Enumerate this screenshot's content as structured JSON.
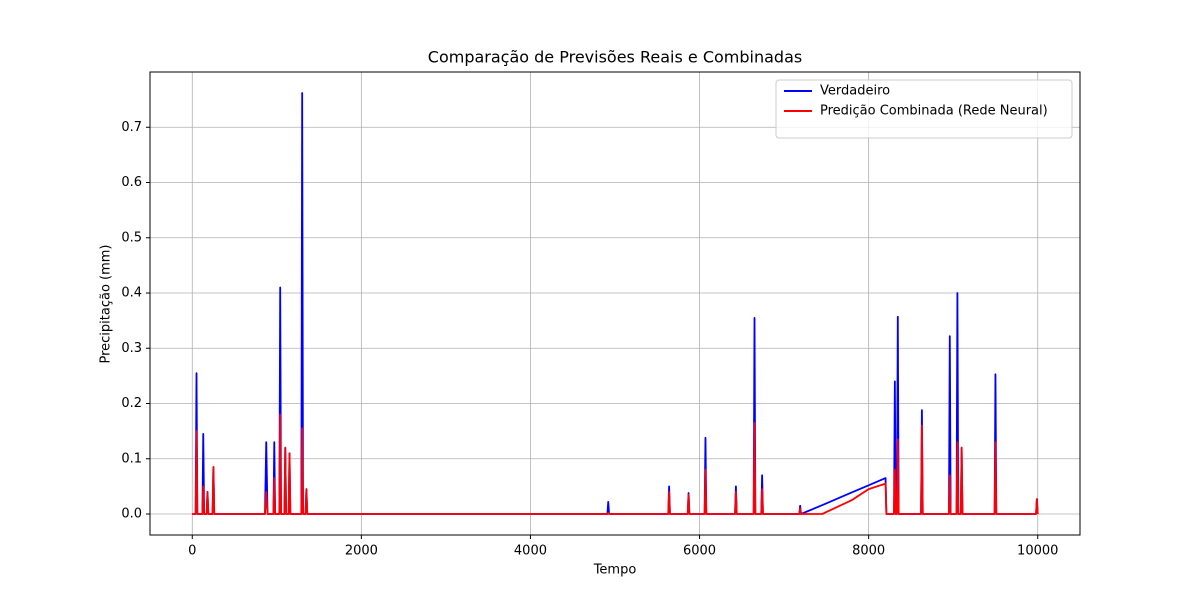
{
  "chart_data": {
    "type": "line",
    "title": "Comparação de Previsões Reais e Combinadas",
    "x_label": "Tempo",
    "y_label": "Precipitação (mm)",
    "x": [
      0,
      40,
      50,
      60,
      120,
      130,
      140,
      170,
      180,
      190,
      240,
      250,
      260,
      860,
      875,
      890,
      960,
      970,
      980,
      1030,
      1040,
      1050,
      1090,
      1100,
      1110,
      1140,
      1150,
      1160,
      1290,
      1300,
      1310,
      1340,
      1350,
      1360,
      4910,
      4920,
      4930,
      5630,
      5640,
      5650,
      5860,
      5870,
      5880,
      6060,
      6070,
      6080,
      6420,
      6430,
      6440,
      6640,
      6650,
      6660,
      6730,
      6740,
      6750,
      7180,
      7190,
      7200,
      7450,
      7800,
      8000,
      8200,
      8210,
      8300,
      8310,
      8320,
      8335,
      8345,
      8355,
      8620,
      8630,
      8640,
      8950,
      8960,
      8970,
      9040,
      9050,
      9060,
      9090,
      9100,
      9110,
      9490,
      9500,
      9510,
      9980,
      9990,
      10000
    ],
    "series": [
      {
        "name": "Verdadeiro",
        "color": "#0000ff",
        "values": [
          0,
          0,
          0.255,
          0,
          0,
          0.145,
          0,
          0,
          0.04,
          0,
          0,
          0.085,
          0,
          0,
          0.13,
          0,
          0,
          0.13,
          0,
          0,
          0.41,
          0,
          0,
          0.12,
          0,
          0,
          0.11,
          0,
          0,
          0.762,
          0,
          0,
          0.045,
          0,
          0,
          0.022,
          0,
          0,
          0.05,
          0,
          0,
          0.038,
          0,
          0,
          0.138,
          0,
          0,
          0.05,
          0,
          0,
          0.355,
          0,
          0,
          0.07,
          0,
          0,
          0.015,
          0,
          0.016,
          0.039,
          0.052,
          0.065,
          0,
          0,
          0.24,
          0,
          0,
          0.357,
          0,
          0,
          0.188,
          0,
          0,
          0.322,
          0,
          0,
          0.4,
          0,
          0,
          0.12,
          0,
          0,
          0.253,
          0,
          0,
          0.027,
          0
        ]
      },
      {
        "name": "Predição Combinada (Rede Neural)",
        "color": "#ff0000",
        "values": [
          0,
          0,
          0.15,
          0,
          0,
          0.05,
          0,
          0,
          0.04,
          0,
          0,
          0.085,
          0,
          0,
          0.04,
          0,
          0,
          0.065,
          0,
          0,
          0.18,
          0,
          0,
          0.12,
          0,
          0,
          0.11,
          0,
          0,
          0.155,
          0,
          0,
          0.045,
          0,
          0,
          0.002,
          0,
          0,
          0.04,
          0,
          0,
          0.035,
          0,
          0,
          0.08,
          0,
          0,
          0.04,
          0,
          0,
          0.165,
          0,
          0,
          0.045,
          0,
          0,
          0.01,
          0,
          0,
          0.025,
          0.045,
          0.055,
          0,
          0,
          0.08,
          0,
          0,
          0.135,
          0,
          0,
          0.16,
          0,
          0,
          0.07,
          0,
          0,
          0.13,
          0,
          0,
          0.12,
          0,
          0,
          0.13,
          0,
          0,
          0.027,
          0
        ]
      }
    ],
    "xlim": [
      -500,
      10500
    ],
    "ylim": [
      -0.038,
      0.8
    ],
    "xticks": [
      0,
      2000,
      4000,
      6000,
      8000,
      10000
    ],
    "yticks": [
      {
        "value": 0,
        "label": "0.0"
      },
      0.1,
      0.2,
      0.3,
      0.4,
      0.5,
      0.6,
      0.7
    ],
    "grid": true,
    "legend": "upper right"
  }
}
